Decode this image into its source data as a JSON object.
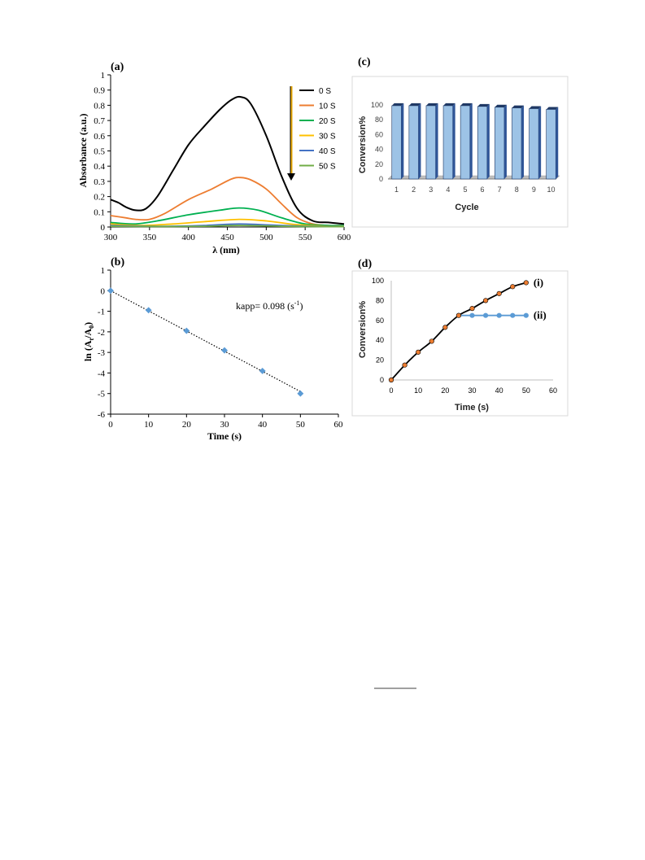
{
  "chart_data": [
    {
      "panel": "(a)",
      "type": "line",
      "xlabel": "λ (nm)",
      "ylabel": "Absorbance (a.u.)",
      "xlim": [
        300,
        600
      ],
      "ylim": [
        0,
        1
      ],
      "xticks": [
        "300",
        "350",
        "400",
        "450",
        "500",
        "550",
        "600"
      ],
      "yticks": [
        "0",
        "0.1",
        "0.2",
        "0.3",
        "0.4",
        "0.5",
        "0.6",
        "0.7",
        "0.8",
        "0.9",
        "1"
      ],
      "legend_position": "top-right",
      "series": [
        {
          "name": "0 S",
          "color": "#000000",
          "x": [
            300,
            310,
            320,
            332,
            345,
            360,
            380,
            400,
            420,
            440,
            455,
            467,
            480,
            500,
            520,
            540,
            560,
            580,
            600
          ],
          "y": [
            0.18,
            0.16,
            0.13,
            0.11,
            0.12,
            0.2,
            0.37,
            0.54,
            0.66,
            0.77,
            0.835,
            0.855,
            0.81,
            0.6,
            0.33,
            0.12,
            0.04,
            0.03,
            0.02
          ]
        },
        {
          "name": "10 S",
          "color": "#ed7d31",
          "x": [
            300,
            320,
            332,
            350,
            370,
            400,
            430,
            455,
            467,
            480,
            500,
            520,
            540,
            560,
            580,
            600
          ],
          "y": [
            0.075,
            0.06,
            0.05,
            0.05,
            0.09,
            0.18,
            0.25,
            0.315,
            0.325,
            0.31,
            0.25,
            0.15,
            0.06,
            0.02,
            0.01,
            0.01
          ]
        },
        {
          "name": "20 S",
          "color": "#00b050",
          "x": [
            300,
            330,
            360,
            400,
            440,
            465,
            490,
            520,
            550,
            580,
            600
          ],
          "y": [
            0.03,
            0.02,
            0.04,
            0.08,
            0.11,
            0.125,
            0.11,
            0.06,
            0.02,
            0.01,
            0.01
          ]
        },
        {
          "name": "30 S",
          "color": "#ffc000",
          "x": [
            300,
            340,
            380,
            420,
            465,
            500,
            540,
            580,
            600
          ],
          "y": [
            0.02,
            0.01,
            0.02,
            0.035,
            0.05,
            0.04,
            0.015,
            0.005,
            0.005
          ]
        },
        {
          "name": "40 S",
          "color": "#4472c4",
          "x": [
            300,
            360,
            420,
            465,
            520,
            580,
            600
          ],
          "y": [
            0.01,
            0.005,
            0.01,
            0.02,
            0.01,
            0.003,
            0.003
          ]
        },
        {
          "name": "50 S",
          "color": "#70ad47",
          "x": [
            300,
            360,
            420,
            465,
            520,
            580,
            600
          ],
          "y": [
            0.005,
            0.003,
            0.005,
            0.01,
            0.005,
            0.002,
            0.002
          ]
        }
      ]
    },
    {
      "panel": "(b)",
      "type": "scatter",
      "xlabel": "Time (s)",
      "ylabel": "ln (At/A0)",
      "xlim": [
        0,
        60
      ],
      "ylim": [
        -6,
        1
      ],
      "xticks": [
        "0",
        "10",
        "20",
        "30",
        "40",
        "50",
        "60"
      ],
      "yticks": [
        "1",
        "0",
        "-1",
        "-2",
        "-3",
        "-4",
        "-5",
        "-6"
      ],
      "annotation": "kapp= 0.098 (s-1)",
      "trendline": {
        "x": [
          0,
          50
        ],
        "y": [
          0,
          -4.9
        ],
        "style": "dotted"
      },
      "series": [
        {
          "name": "",
          "color": "#5b9bd5",
          "x": [
            0,
            10,
            20,
            30,
            40,
            50
          ],
          "y": [
            0,
            -0.95,
            -1.95,
            -2.9,
            -3.9,
            -5.0
          ]
        }
      ]
    },
    {
      "panel": "(c)",
      "type": "bar",
      "xlabel": "Cycle",
      "ylabel": "Conversion%",
      "ylim": [
        0,
        100
      ],
      "yticks": [
        "0",
        "20",
        "40",
        "60",
        "80",
        "100"
      ],
      "categories": [
        "1",
        "2",
        "3",
        "4",
        "5",
        "6",
        "7",
        "8",
        "9",
        "10"
      ],
      "values": [
        99,
        99,
        99,
        99,
        99,
        98,
        97,
        96,
        95,
        94
      ],
      "color": "#9dc3e6"
    },
    {
      "panel": "(d)",
      "type": "line",
      "xlabel": "Time (s)",
      "ylabel": "Conversion%",
      "xlim": [
        0,
        60
      ],
      "ylim": [
        0,
        100
      ],
      "xticks": [
        "0",
        "10",
        "20",
        "30",
        "40",
        "50",
        "60"
      ],
      "yticks": [
        "0",
        "20",
        "40",
        "60",
        "80",
        "100"
      ],
      "series": [
        {
          "name": "(i)",
          "color": "#000000",
          "marker_color": "#ed7d31",
          "x": [
            0,
            5,
            10,
            15,
            20,
            25,
            30,
            35,
            40,
            45,
            50
          ],
          "y": [
            0,
            15,
            28,
            39,
            53,
            65,
            72,
            80,
            87,
            94,
            98
          ]
        },
        {
          "name": "(ii)",
          "color": "#5b9bd5",
          "marker_color": "#5b9bd5",
          "x": [
            25,
            30,
            35,
            40,
            45,
            50
          ],
          "y": [
            65,
            65,
            65,
            65,
            65,
            65
          ]
        }
      ]
    }
  ]
}
